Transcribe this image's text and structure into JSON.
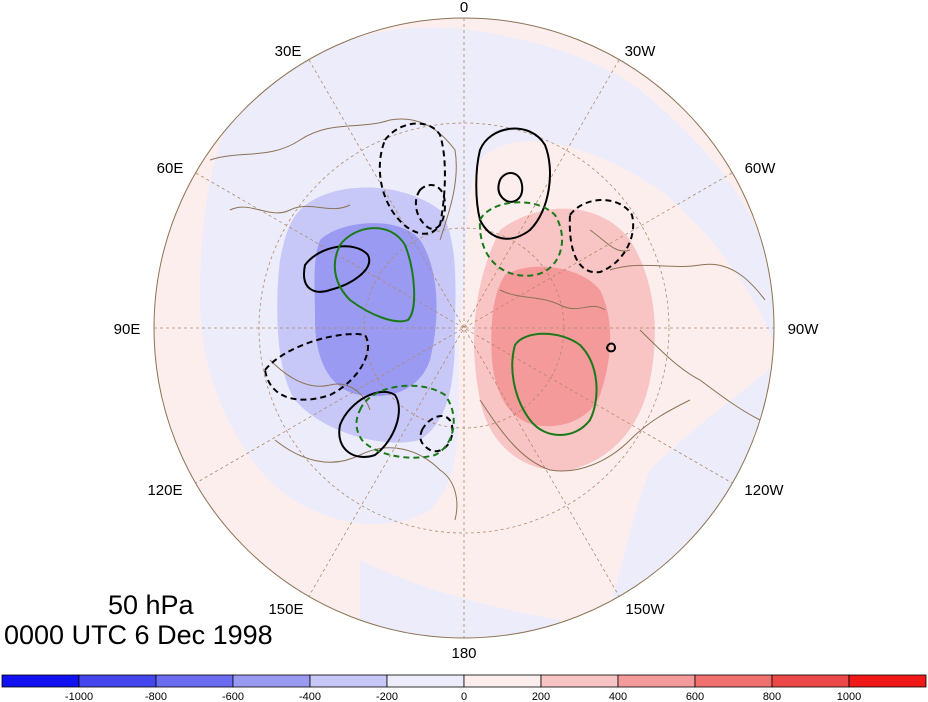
{
  "title": {
    "level": "50 hPa",
    "time": "0000 UTC 6 Dec 1998"
  },
  "map": {
    "projection": "north-polar-stereographic",
    "longitude_labels": [
      "0",
      "30W",
      "60W",
      "90W",
      "120W",
      "150W",
      "180",
      "150E",
      "120E",
      "90E",
      "60E",
      "30E"
    ],
    "graticule": "dashed",
    "coastline_color": "#8b7355"
  },
  "colorbar": {
    "colors": [
      "#1010f0",
      "#4545ee",
      "#6c6cf0",
      "#9a9af2",
      "#c8c8f8",
      "#ececfb",
      "#fdeeee",
      "#f8c4c4",
      "#f59a9a",
      "#f07070",
      "#ec4848",
      "#f01818"
    ],
    "tick_labels": [
      "-1000",
      "-800",
      "-600",
      "-400",
      "-200",
      "0",
      "200",
      "400",
      "600",
      "800",
      "1000"
    ]
  },
  "legend_colors": {
    "contour_black": "#000000",
    "contour_green": "#1a7a1a"
  }
}
